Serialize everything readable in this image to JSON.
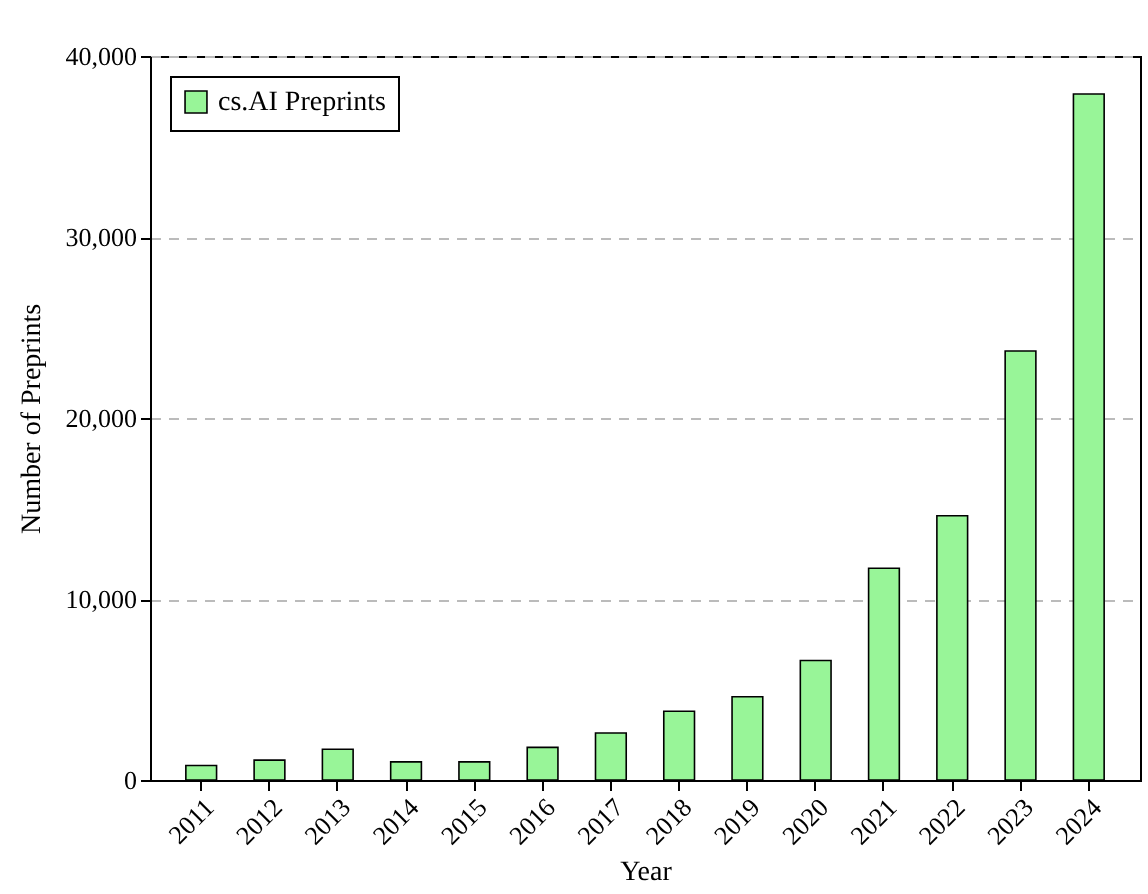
{
  "chart_data": {
    "type": "bar",
    "xlabel": "Year",
    "ylabel": "Number of Preprints",
    "categories": [
      "2011",
      "2012",
      "2013",
      "2014",
      "2015",
      "2016",
      "2017",
      "2018",
      "2019",
      "2020",
      "2021",
      "2022",
      "2023",
      "2024"
    ],
    "series": [
      {
        "name": "cs.AI Preprints",
        "color": "#98f598",
        "values": [
          800,
          1100,
          1700,
          1000,
          1000,
          1800,
          2600,
          3800,
          4600,
          6600,
          11700,
          14600,
          23700,
          37900
        ]
      }
    ],
    "ylim": [
      0,
      40000
    ],
    "yticks": [
      0,
      {
        "value": 10000,
        "label": "10,000"
      },
      {
        "value": 20000,
        "label": "20,000"
      },
      {
        "value": 30000,
        "label": "30,000"
      },
      {
        "value": 40000,
        "label": "40,000"
      }
    ],
    "grid": "y",
    "legend": "top left"
  }
}
